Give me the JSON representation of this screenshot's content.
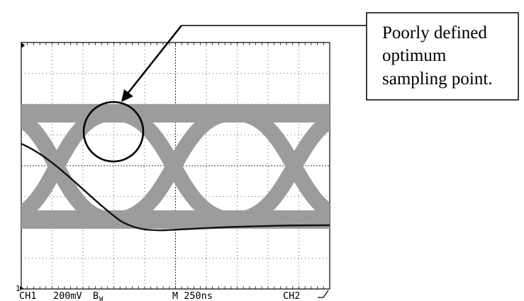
{
  "callout": {
    "lines": [
      "Poorly defined",
      "optimum",
      "sampling point."
    ]
  },
  "scope": {
    "ch1_label": "CH1",
    "ch1_scale": "200mV",
    "ch1_bw_mark": "B",
    "ch1_bw_sub": "W",
    "timebase": "M 250ns",
    "ch2_label": "CH2",
    "trigger_slope_icon": "rising-edge-icon",
    "ground_marker": "1",
    "divisions": {
      "horizontal": 10,
      "vertical": 8
    }
  },
  "colors": {
    "eye_band": "#9c9c9c",
    "single_trace": "#111111",
    "grid": "#333333",
    "frame": "#000000"
  }
}
